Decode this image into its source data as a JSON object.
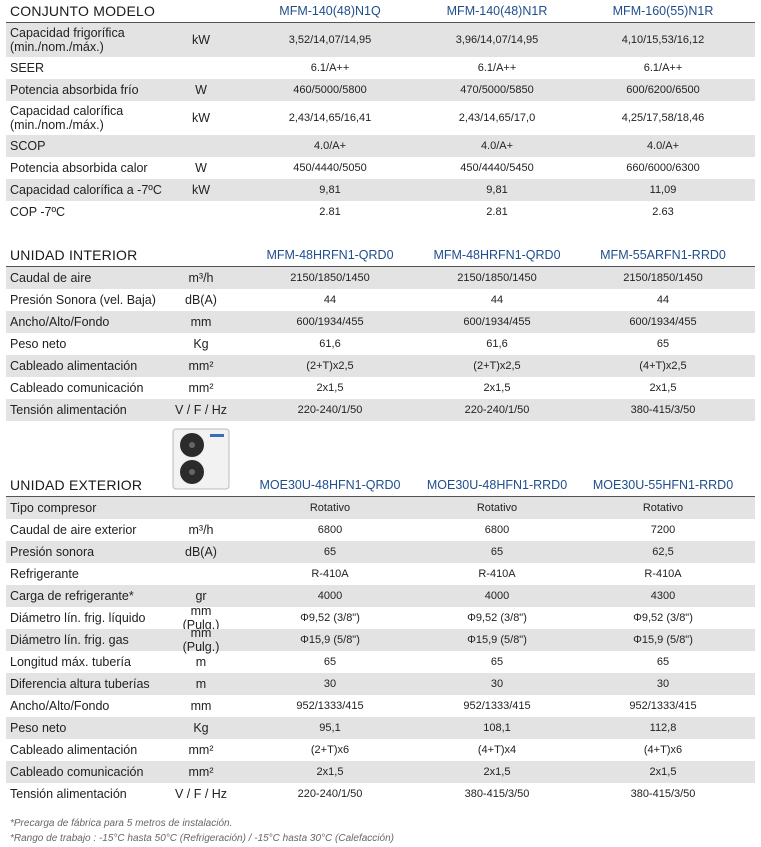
{
  "sections": [
    {
      "title": "CONJUNTO MODELO",
      "models": [
        "MFM-140(48)N1Q",
        "MFM-140(48)N1R",
        "MFM-160(55)N1R"
      ],
      "rows": [
        {
          "label": "Capacidad frigorífica (min./nom./máx.)",
          "unit": "kW",
          "values": [
            "3,52/14,07/14,95",
            "3,96/14,07/14,95",
            "4,10/15,53/16,12"
          ]
        },
        {
          "label": "SEER",
          "values": [
            "6.1/A++",
            "6.1/A++",
            "6.1/A++"
          ]
        },
        {
          "label": "Potencia absorbida frío",
          "unit": "W",
          "values": [
            "460/5000/5800",
            "470/5000/5850",
            "600/6200/6500"
          ]
        },
        {
          "label": "Capacidad calorífica (min./nom./máx.)",
          "unit": "kW",
          "values": [
            "2,43/14,65/16,41",
            "2,43/14,65/17,0",
            "4,25/17,58/18,46"
          ]
        },
        {
          "label": "SCOP",
          "values": [
            "4.0/A+",
            "4.0/A+",
            "4.0/A+"
          ]
        },
        {
          "label": "Potencia absorbida calor",
          "unit": "W",
          "values": [
            "450/4440/5050",
            "450/4440/5450",
            "660/6000/6300"
          ]
        },
        {
          "label": "Capacidad calorífica a -7ºC",
          "unit": "kW",
          "values": [
            "9,81",
            "9,81",
            "11,09"
          ]
        },
        {
          "label": "COP -7ºC",
          "values": [
            "2.81",
            "2.81",
            "2.63"
          ]
        }
      ]
    },
    {
      "title": "UNIDAD INTERIOR",
      "models": [
        "MFM-48HRFN1-QRD0",
        "MFM-48HRFN1-QRD0",
        "MFM-55ARFN1-RRD0"
      ],
      "rows": [
        {
          "label": "Caudal de aire",
          "unit": "m³/h",
          "values": [
            "2150/1850/1450",
            "2150/1850/1450",
            "2150/1850/1450"
          ]
        },
        {
          "label": "Presión Sonora (vel. Baja)",
          "unit": "dB(A)",
          "values": [
            "44",
            "44",
            "44"
          ]
        },
        {
          "label": "Ancho/Alto/Fondo",
          "unit": "mm",
          "values": [
            "600/1934/455",
            "600/1934/455",
            "600/1934/455"
          ]
        },
        {
          "label": "Peso neto",
          "unit": "Kg",
          "values": [
            "61,6",
            "61,6",
            "65"
          ]
        },
        {
          "label": "Cableado alimentación",
          "unit": "mm²",
          "values": [
            "(2+T)x2,5",
            "(2+T)x2,5",
            "(4+T)x2,5"
          ]
        },
        {
          "label": "Cableado comunicación",
          "unit": "mm²",
          "values": [
            "2x1,5",
            "2x1,5",
            "2x1,5"
          ]
        },
        {
          "label": "Tensión alimentación",
          "unit": "V / F / Hz",
          "values": [
            "220-240/1/50",
            "220-240/1/50",
            "380-415/3/50"
          ]
        }
      ]
    },
    {
      "title": "UNIDAD EXTERIOR",
      "models": [
        "MOE30U-48HFN1-QRD0",
        "MOE30U-48HFN1-RRD0",
        "MOE30U-55HFN1-RRD0"
      ],
      "rows": [
        {
          "label": "Tipo compresor",
          "values": [
            "Rotativo",
            "Rotativo",
            "Rotativo"
          ]
        },
        {
          "label": "Caudal de aire exterior",
          "unit": "m³/h",
          "values": [
            "6800",
            "6800",
            "7200"
          ]
        },
        {
          "label": "Presión sonora",
          "unit": "dB(A)",
          "values": [
            "65",
            "65",
            "62,5"
          ]
        },
        {
          "label": "Refrigerante",
          "values": [
            "R-410A",
            "R-410A",
            "R-410A"
          ]
        },
        {
          "label": "Carga de refrigerante*",
          "unit": "gr",
          "values": [
            "4000",
            "4000",
            "4300"
          ]
        },
        {
          "label": "Diámetro lín. frig. líquido",
          "unit": "mm (Pulg.)",
          "values": [
            "Φ9,52 (3/8\")",
            "Φ9,52 (3/8\")",
            "Φ9,52 (3/8\")"
          ]
        },
        {
          "label": "Diámetro lín. frig. gas",
          "unit": "mm (Pulg.)",
          "values": [
            "Φ15,9 (5/8\")",
            "Φ15,9 (5/8\")",
            "Φ15,9 (5/8\")"
          ]
        },
        {
          "label": "Longitud máx. tubería",
          "unit": "m",
          "values": [
            "65",
            "65",
            "65"
          ]
        },
        {
          "label": "Diferencia altura tuberías",
          "unit": "m",
          "values": [
            "30",
            "30",
            "30"
          ]
        },
        {
          "label": "Ancho/Alto/Fondo",
          "unit": "mm",
          "values": [
            "952/1333/415",
            "952/1333/415",
            "952/1333/415"
          ]
        },
        {
          "label": "Peso neto",
          "unit": "Kg",
          "values": [
            "95,1",
            "108,1",
            "112,8"
          ]
        },
        {
          "label": "Cableado alimentación",
          "unit": "mm²",
          "values": [
            "(2+T)x6",
            "(4+T)x4",
            "(4+T)x6"
          ]
        },
        {
          "label": "Cableado comunicación",
          "unit": "mm²",
          "values": [
            "2x1,5",
            "2x1,5",
            "2x1,5"
          ]
        },
        {
          "label": "Tensión alimentación",
          "unit": "V / F / Hz",
          "values": [
            "220-240/1/50",
            "380-415/3/50",
            "380-415/3/50"
          ]
        }
      ]
    }
  ],
  "footnotes": [
    "*Precarga de fábrica para 5 metros de instalación.",
    "*Rango de trabajo : -15°C hasta 50°C (Refrigeración) / -15°C hasta 30°C (Calefacción)"
  ]
}
